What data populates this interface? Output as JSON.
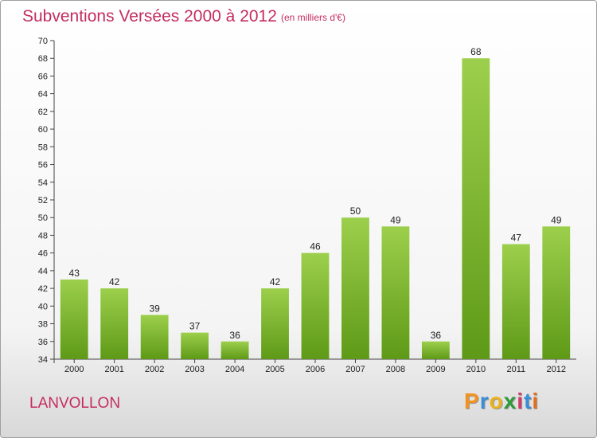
{
  "chart_data": {
    "type": "bar",
    "title": "Subventions Versées 2000 à 2012",
    "subtitle": "(en milliers d'€)",
    "categories": [
      "2000",
      "2001",
      "2002",
      "2003",
      "2004",
      "2005",
      "2006",
      "2007",
      "2008",
      "2009",
      "2010",
      "2011",
      "2012"
    ],
    "values": [
      43,
      42,
      39,
      37,
      36,
      42,
      46,
      50,
      49,
      36,
      68,
      47,
      49
    ],
    "ylim": [
      34,
      70
    ],
    "ytick_step": 2,
    "grid": false,
    "xlabel": "",
    "ylabel": "",
    "colors": {
      "bar_light": "#9ccf4c",
      "bar_dark": "#5e9a17",
      "title": "#c42d5f"
    }
  },
  "footer": {
    "commune": "LANVOLLON",
    "brand_letters": [
      "P",
      "r",
      "o",
      "x",
      "i",
      "t",
      "i"
    ],
    "brand_colors": [
      "#f29221",
      "#3a8ed8",
      "#e9b21c",
      "#2f9a3a",
      "#d23a6a",
      "#3a8ed8",
      "#e36f1e"
    ]
  }
}
